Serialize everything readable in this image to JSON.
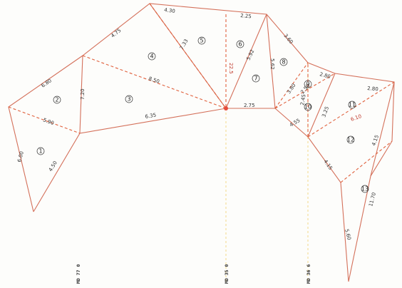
{
  "regions": [
    "1",
    "2",
    "3",
    "4",
    "5",
    "6",
    "7",
    "8",
    "9",
    "10",
    "11",
    "12",
    "13"
  ],
  "measurements": {
    "left_outer": "6.00",
    "left_lower": "4.50",
    "left_slope": "6.80",
    "left_inner_a": "7.20",
    "upper_left": "4.75",
    "top_left": "4.30",
    "mid_long": "8.50",
    "mid_dash": "7.33",
    "mid_base": "6.35",
    "top_mid": "2.25",
    "center_vert": "22.5",
    "top_right_diag": "5.92",
    "right_short": "2.75",
    "right_edge": "3.60",
    "right_upper_a": "5.62",
    "right_upper_b": "3.80",
    "right_dash_a": "2.50",
    "right_dash_b": "2.45",
    "right_top": "2.80",
    "right_mid": "3.25",
    "right_long": "6.10",
    "right_lower_a": "4.55",
    "right_lower_b": "4.15",
    "right_far": "11.70",
    "bottom_right": "5.60",
    "lower_left": "5.90",
    "lower_mid": "4.15"
  },
  "bottom_labels": [
    "MD 77 0",
    "MD 35 0",
    "MD 36 6"
  ],
  "colors": {
    "solid": "#d4705a",
    "dashed": "#e0603c",
    "vertical": "#f2d98a",
    "center": "#e74c3c"
  }
}
